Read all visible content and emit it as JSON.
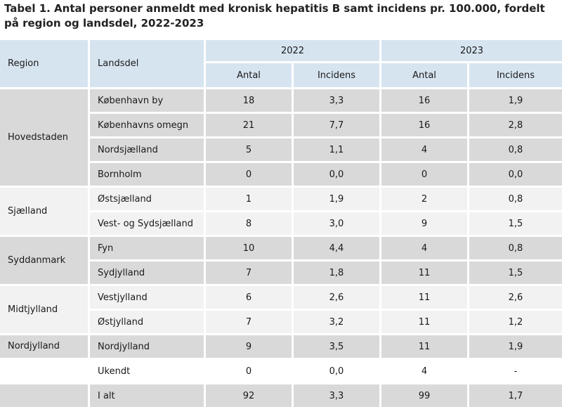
{
  "title": "Tabel 1. Antal personer anmeldt med kronisk hepatitis B samt incidens pr. 100.000, fordelt på region og landsdel, 2022-2023",
  "header": {
    "region": "Region",
    "landsdel": "Landsdel",
    "year1": "2022",
    "year2": "2023",
    "antal": "Antal",
    "incidens": "Incidens"
  },
  "regions": [
    {
      "name": "Hovedstaden",
      "shade": "dark",
      "rows": [
        {
          "landsdel": "København by",
          "a22": "18",
          "i22": "3,3",
          "a23": "16",
          "i23": "1,9"
        },
        {
          "landsdel": "Københavns omegn",
          "a22": "21",
          "i22": "7,7",
          "a23": "16",
          "i23": "2,8"
        },
        {
          "landsdel": "Nordsjælland",
          "a22": "5",
          "i22": "1,1",
          "a23": "4",
          "i23": "0,8"
        },
        {
          "landsdel": "Bornholm",
          "a22": "0",
          "i22": "0,0",
          "a23": "0",
          "i23": "0,0"
        }
      ]
    },
    {
      "name": "Sjælland",
      "shade": "light",
      "rows": [
        {
          "landsdel": "Østsjælland",
          "a22": "1",
          "i22": "1,9",
          "a23": "2",
          "i23": "0,8"
        },
        {
          "landsdel": "Vest- og Sydsjælland",
          "a22": "8",
          "i22": "3,0",
          "a23": "9",
          "i23": "1,5"
        }
      ]
    },
    {
      "name": "Syddanmark",
      "shade": "dark",
      "rows": [
        {
          "landsdel": "Fyn",
          "a22": "10",
          "i22": "4,4",
          "a23": "4",
          "i23": "0,8"
        },
        {
          "landsdel": "Sydjylland",
          "a22": "7",
          "i22": "1,8",
          "a23": "11",
          "i23": "1,5"
        }
      ]
    },
    {
      "name": "Midtjylland",
      "shade": "light",
      "rows": [
        {
          "landsdel": "Vestjylland",
          "a22": "6",
          "i22": "2,6",
          "a23": "11",
          "i23": "2,6"
        },
        {
          "landsdel": "Østjylland",
          "a22": "7",
          "i22": "3,2",
          "a23": "11",
          "i23": "1,2"
        }
      ]
    },
    {
      "name": "Nordjylland",
      "shade": "dark",
      "rows": [
        {
          "landsdel": "Nordjylland",
          "a22": "9",
          "i22": "3,5",
          "a23": "11",
          "i23": "1,9"
        }
      ]
    },
    {
      "name": "",
      "shade": "white",
      "rows": [
        {
          "landsdel": "Ukendt",
          "a22": "0",
          "i22": "0,0",
          "a23": "4",
          "i23": "-"
        }
      ]
    },
    {
      "name": "",
      "shade": "dark",
      "rows": [
        {
          "landsdel": "I alt",
          "a22": "92",
          "i22": "3,3",
          "a23": "99",
          "i23": "1,7"
        }
      ]
    }
  ]
}
